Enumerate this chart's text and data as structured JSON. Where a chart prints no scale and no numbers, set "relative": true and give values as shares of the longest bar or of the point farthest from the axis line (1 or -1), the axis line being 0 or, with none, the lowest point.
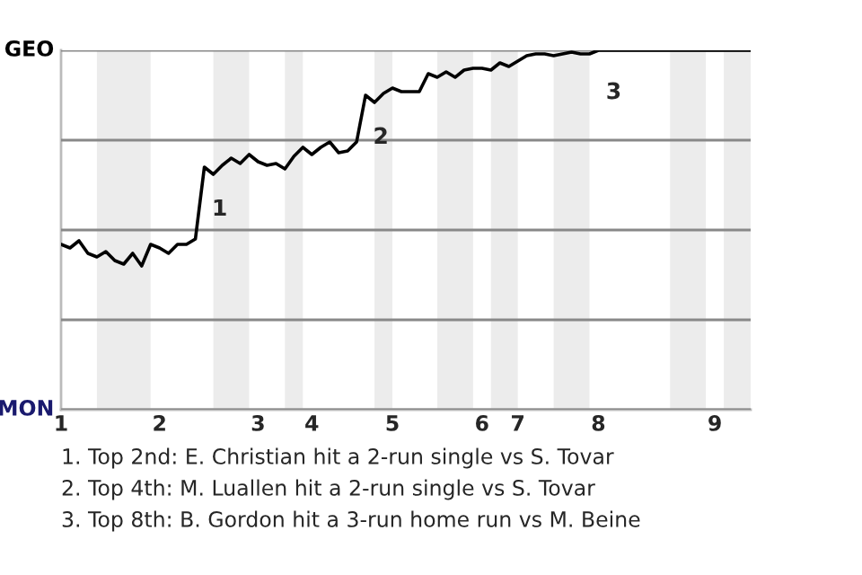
{
  "chart_data": {
    "type": "line",
    "relative": true,
    "categories": [
      "1",
      null,
      null,
      null,
      null,
      null,
      null,
      null,
      null,
      null,
      null,
      "2",
      null,
      null,
      null,
      null,
      null,
      null,
      null,
      null,
      null,
      null,
      "3",
      null,
      null,
      null,
      null,
      null,
      "4",
      null,
      null,
      null,
      null,
      null,
      null,
      null,
      null,
      "5",
      null,
      null,
      null,
      null,
      null,
      null,
      null,
      null,
      null,
      "6",
      null,
      null,
      null,
      "7",
      null,
      null,
      null,
      null,
      null,
      null,
      null,
      null,
      "8",
      null,
      null,
      null,
      null,
      null,
      null,
      null,
      null,
      null,
      null,
      null,
      null,
      "9",
      null,
      null,
      null,
      null
    ],
    "series": [
      {
        "color": "#000000",
        "values": [
          0.46,
          0.45,
          0.47,
          0.435,
          0.425,
          0.44,
          0.415,
          0.405,
          0.435,
          0.4,
          0.46,
          0.45,
          0.435,
          0.46,
          0.46,
          0.475,
          0.675,
          0.655,
          0.68,
          0.7,
          0.685,
          0.71,
          0.69,
          0.68,
          0.685,
          0.67,
          0.705,
          0.73,
          0.71,
          0.73,
          0.745,
          0.715,
          0.72,
          0.745,
          0.875,
          0.855,
          0.88,
          0.895,
          0.885,
          0.885,
          0.885,
          0.935,
          0.925,
          0.94,
          0.925,
          0.945,
          0.95,
          0.95,
          0.945,
          0.965,
          0.955,
          0.97,
          0.985,
          0.99,
          0.99,
          0.985,
          0.99,
          0.995,
          0.99,
          0.99,
          1,
          1,
          1,
          1,
          1,
          1,
          1,
          1,
          1,
          1,
          1,
          1,
          1,
          1,
          1,
          1,
          1,
          1
        ],
        "colors": [
          "#000000",
          "#000000",
          "#000000",
          "#000000",
          "#1a1a6e",
          "#1a1a6e",
          "#1a1a6e",
          "#1a1a6e",
          "#1a1a6e",
          "#1a1a6e",
          "#000000",
          "#000000",
          "#000000",
          "#000000",
          "#000000",
          "#000000",
          "#000000",
          "#1a1a6e",
          "#1a1a6e",
          "#1a1a6e",
          "#1a1a6e",
          "#000000",
          "#000000",
          "#000000",
          "#000000",
          "#1a1a6e",
          "#1a1a6e",
          "#000000",
          "#000000",
          "#000000",
          "#000000",
          "#000000",
          "#000000",
          "#000000",
          "#000000",
          "#1a1a6e",
          "#1a1a6e",
          "#000000",
          "#000000",
          "#000000",
          "#000000",
          "#000000",
          "#1a1a6e",
          "#1a1a6e",
          "#1a1a6e",
          "#1a1a6e",
          "#000000",
          "#000000",
          "#1a1a6e",
          "#1a1a6e",
          "#1a1a6e",
          "#000000",
          "#000000",
          "#000000",
          "#000000",
          "#1a1a6e",
          "#1a1a6e",
          "#1a1a6e",
          "#1a1a6e",
          "#000000",
          "#000000",
          "#000000",
          "#000000",
          "#000000",
          "#000000",
          "#000000",
          "#000000",
          "#000000",
          "#1a1a6e",
          "#1a1a6e",
          "#1a1a6e",
          "#1a1a6e",
          "#000000",
          "#000000",
          "#1a1a6e",
          "#1a1a6e",
          "#1a1a6e",
          "#1a1a6e"
        ]
      }
    ],
    "grid": "y",
    "annotations": [
      "GEO",
      "MON",
      {
        "text": "1",
        "y": 0.675
      },
      {
        "text": "2",
        "y": 0.875
      },
      {
        "text": "3",
        "y": 1
      },
      "1. Top 2nd: E. Christian hit a 2-run single vs S. Tovar",
      "2. Top 4th: M. Luallen hit a 2-run single vs S. Tovar",
      "3. Top 8th: B. Gordon hit a 3-run home run vs M. Beine"
    ],
    "line_style": "solid",
    "marker": "none"
  }
}
